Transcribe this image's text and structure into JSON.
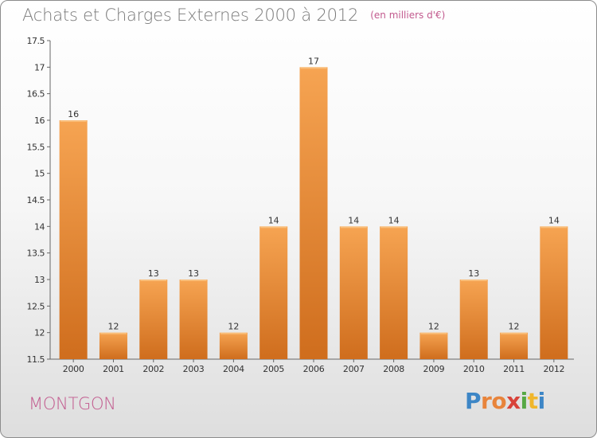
{
  "header": {
    "title": "Achats et Charges Externes 2000 à 2012",
    "subtitle": "(en milliers d'€)"
  },
  "footer": {
    "town": "MONTGON",
    "logo_letters": [
      "P",
      "r",
      "o",
      "x",
      "i",
      "t",
      "i"
    ]
  },
  "colors": {
    "bar_top": "#f6a452",
    "bar_bottom": "#cf6d1d",
    "accent": "#c25a8e"
  },
  "chart_data": {
    "type": "bar",
    "title": "Achats et Charges Externes 2000 à 2012",
    "subtitle": "(en milliers d'€)",
    "categories": [
      "2000",
      "2001",
      "2002",
      "2003",
      "2004",
      "2005",
      "2006",
      "2007",
      "2008",
      "2009",
      "2010",
      "2011",
      "2012"
    ],
    "values": [
      16,
      12,
      13,
      13,
      12,
      14,
      17,
      14,
      14,
      12,
      13,
      12,
      14
    ],
    "labels": [
      "16",
      "12",
      "13",
      "13",
      "12",
      "14",
      "17",
      "14",
      "14",
      "12",
      "13",
      "12",
      "14"
    ],
    "ylim": [
      11.5,
      17.5
    ],
    "yticks": [
      "11.5",
      "12",
      "12.5",
      "13",
      "13.5",
      "14",
      "14.5",
      "15",
      "15.5",
      "16",
      "16.5",
      "17",
      "17.5"
    ],
    "grid": false,
    "xlabel": "",
    "ylabel": ""
  }
}
